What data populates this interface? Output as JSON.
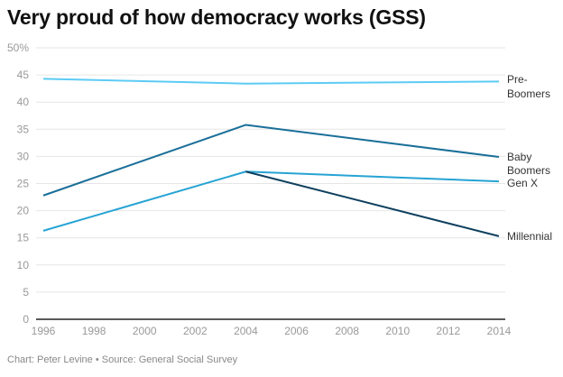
{
  "chart_data": {
    "type": "line",
    "title": "Very proud of how democracy works (GSS)",
    "xlabel": "",
    "ylabel": "",
    "x": [
      1996,
      2004,
      2014
    ],
    "xticks": [
      "1996",
      "1998",
      "2000",
      "2002",
      "2004",
      "2006",
      "2008",
      "2010",
      "2012",
      "2014"
    ],
    "yticks": [
      "0",
      "5",
      "10",
      "15",
      "20",
      "25",
      "30",
      "35",
      "40",
      "45",
      "50%"
    ],
    "xlim": [
      1996,
      2014
    ],
    "ylim": [
      0,
      50
    ],
    "grid": true,
    "legend": "direct-labels-right",
    "series": [
      {
        "name": "Pre-Boomers",
        "label_lines": [
          "Pre-",
          "Boomers"
        ],
        "color": "#5ccbf5",
        "x": [
          1996,
          2004,
          2014
        ],
        "values": [
          44.3,
          43.4,
          43.8
        ]
      },
      {
        "name": "Baby Boomers",
        "label_lines": [
          "Baby",
          "Boomers"
        ],
        "color": "#1a6f99",
        "x": [
          1996,
          2004,
          2014
        ],
        "values": [
          22.8,
          35.8,
          29.9
        ]
      },
      {
        "name": "Gen X",
        "label_lines": [
          "Gen X"
        ],
        "color": "#26a3d4",
        "x": [
          1996,
          2004,
          2014
        ],
        "values": [
          16.3,
          27.2,
          25.4
        ]
      },
      {
        "name": "Millennial",
        "label_lines": [
          "Millennial"
        ],
        "color": "#0d3f5e",
        "x": [
          2004,
          2014
        ],
        "values": [
          27.2,
          15.3
        ]
      }
    ]
  },
  "footer": "Chart: Peter Levine • Source: General Social Survey"
}
